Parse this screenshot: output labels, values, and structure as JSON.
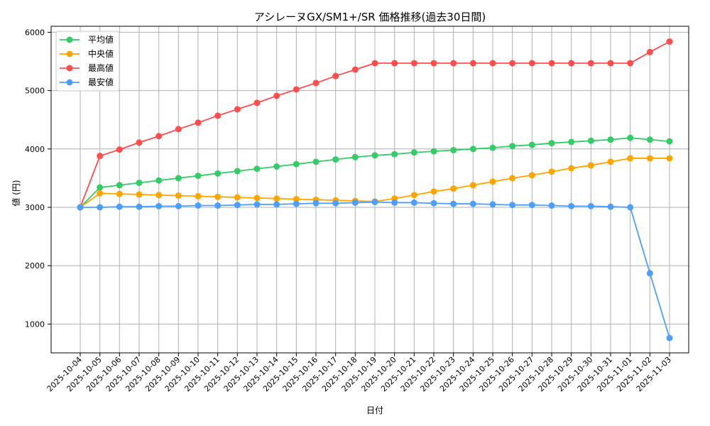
{
  "chart_data": {
    "type": "line",
    "title": "アシレーヌGX/SM1+/SR 価格推移(過去30日間)",
    "xlabel": "日付",
    "ylabel": "値 (円)",
    "ylim": [
      500,
      6100
    ],
    "yticks": [
      1000,
      2000,
      3000,
      4000,
      5000,
      6000
    ],
    "grid": true,
    "legend_position": "upper left",
    "categories": [
      "2025-10-04",
      "2025-10-05",
      "2025-10-06",
      "2025-10-07",
      "2025-10-08",
      "2025-10-09",
      "2025-10-10",
      "2025-10-11",
      "2025-10-12",
      "2025-10-13",
      "2025-10-14",
      "2025-10-15",
      "2025-10-16",
      "2025-10-17",
      "2025-10-18",
      "2025-10-19",
      "2025-10-20",
      "2025-10-21",
      "2025-10-22",
      "2025-10-23",
      "2025-10-24",
      "2025-10-25",
      "2025-10-26",
      "2025-10-27",
      "2025-10-28",
      "2025-10-29",
      "2025-10-30",
      "2025-10-31",
      "2025-11-01",
      "2025-11-02",
      "2025-11-03"
    ],
    "series": [
      {
        "name": "平均値",
        "color": "#33cc66",
        "values": [
          3000,
          3340,
          3380,
          3420,
          3460,
          3500,
          3540,
          3580,
          3620,
          3660,
          3700,
          3740,
          3780,
          3820,
          3860,
          3890,
          3910,
          3940,
          3960,
          3980,
          4000,
          4020,
          4050,
          4070,
          4100,
          4120,
          4140,
          4160,
          4190,
          4160,
          4130
        ]
      },
      {
        "name": "中央値",
        "color": "#ffa500",
        "values": [
          3000,
          3240,
          3230,
          3220,
          3210,
          3200,
          3190,
          3180,
          3170,
          3160,
          3150,
          3140,
          3130,
          3120,
          3110,
          3100,
          3150,
          3210,
          3270,
          3320,
          3380,
          3440,
          3500,
          3550,
          3610,
          3670,
          3720,
          3780,
          3840,
          3840,
          3840
        ]
      },
      {
        "name": "最高値",
        "color": "#ff4d4d",
        "values": [
          3000,
          3880,
          3990,
          4110,
          4220,
          4340,
          4450,
          4570,
          4680,
          4790,
          4910,
          5020,
          5130,
          5250,
          5360,
          5470,
          5470,
          5470,
          5470,
          5470,
          5470,
          5470,
          5470,
          5470,
          5470,
          5470,
          5470,
          5470,
          5470,
          5660,
          5840
        ]
      },
      {
        "name": "最安値",
        "color": "#4d9fff",
        "values": [
          3000,
          3000,
          3010,
          3010,
          3020,
          3020,
          3030,
          3030,
          3040,
          3050,
          3050,
          3060,
          3070,
          3070,
          3080,
          3090,
          3080,
          3080,
          3070,
          3060,
          3060,
          3050,
          3040,
          3040,
          3030,
          3020,
          3020,
          3010,
          3000,
          1870,
          760
        ]
      }
    ]
  }
}
